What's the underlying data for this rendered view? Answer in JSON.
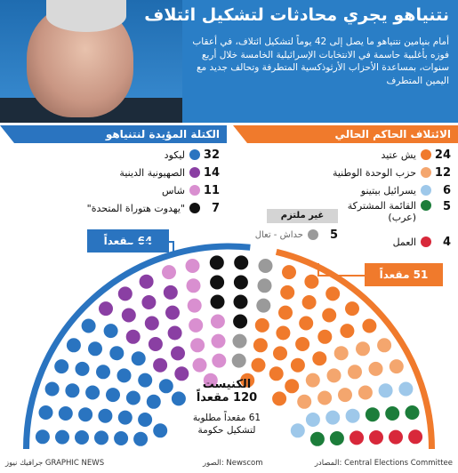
{
  "header": {
    "title": "نتنياهو يجري محادثات لتشكيل ائتلاف",
    "intro": "أمام بنيامين نتنياهو ما يصل إلى 42 يوماً لتشكيل ائتلاف، في أعقاب فوزه بأغلبية حاسمة في الانتخابات الإسرائيلية الخامسة خلال أربع سنوات، بمساعدة الأحزاب الأرثوذكسية المتطرفة وتحالف جديد مع اليمين المتطرف"
  },
  "left_bloc": {
    "title": "الكتلة المؤيدة لنتنياهو",
    "seats_label": "64 مقعداً",
    "parties": [
      {
        "seats": "32",
        "name": "ليكود",
        "color": "#2a74c0"
      },
      {
        "seats": "14",
        "name": "الصهيونية الدينية",
        "color": "#8a3fa3"
      },
      {
        "seats": "11",
        "name": "شاس",
        "color": "#d98fd0"
      },
      {
        "seats": "7",
        "name": "\"يهدوت هتوراة المتحدة\"",
        "color": "#111111"
      }
    ]
  },
  "right_bloc": {
    "title": "الائتلاف الحاكم الحالي",
    "seats_label": "51 مقعداً",
    "parties": [
      {
        "seats": "24",
        "name": "يش عتيد",
        "color": "#f07a2c"
      },
      {
        "seats": "12",
        "name": "حزب الوحدة الوطنية",
        "color": "#f4a66e"
      },
      {
        "seats": "6",
        "name": "يسرائيل بيتينو",
        "color": "#9ec8ea"
      },
      {
        "seats": "5",
        "name": "القائمة المشتركة (عرب)",
        "color": "#1c7d3a"
      },
      {
        "seats": "4",
        "name": "العمل",
        "color": "#d8283a"
      }
    ]
  },
  "nonaligned": {
    "title": "غير ملتزم",
    "seats": "5",
    "name": "حداش - تعال",
    "color": "#9a9a9a"
  },
  "chart_data": {
    "type": "parliament",
    "title": "الكنيست",
    "total_label": "120 مقعداً",
    "majority_label": "61 مقعداً مطلوبة لتشكيل حكومة",
    "total": 120,
    "majority": 61,
    "series": [
      {
        "name": "ليكود",
        "value": 32,
        "color": "#2a74c0"
      },
      {
        "name": "الصهيونية الدينية",
        "value": 14,
        "color": "#8a3fa3"
      },
      {
        "name": "شاس",
        "value": 11,
        "color": "#d98fd0"
      },
      {
        "name": "\"يهدوت هتوراة المتحدة\"",
        "value": 7,
        "color": "#111111"
      },
      {
        "name": "حداش - تعال",
        "value": 5,
        "color": "#9a9a9a"
      },
      {
        "name": "يش عتيد",
        "value": 24,
        "color": "#f07a2c"
      },
      {
        "name": "حزب الوحدة الوطنية",
        "value": 12,
        "color": "#f4a66e"
      },
      {
        "name": "يسرائيل بيتينو",
        "value": 6,
        "color": "#9ec8ea"
      },
      {
        "name": "القائمة المشتركة (عرب)",
        "value": 5,
        "color": "#1c7d3a"
      },
      {
        "name": "العمل",
        "value": 4,
        "color": "#d8283a"
      }
    ]
  },
  "footer": {
    "source": "المصادر: Central Elections Committee",
    "photo": "الصور: Newscom",
    "credit": "جرافيك نيوز GRAPHIC NEWS"
  }
}
